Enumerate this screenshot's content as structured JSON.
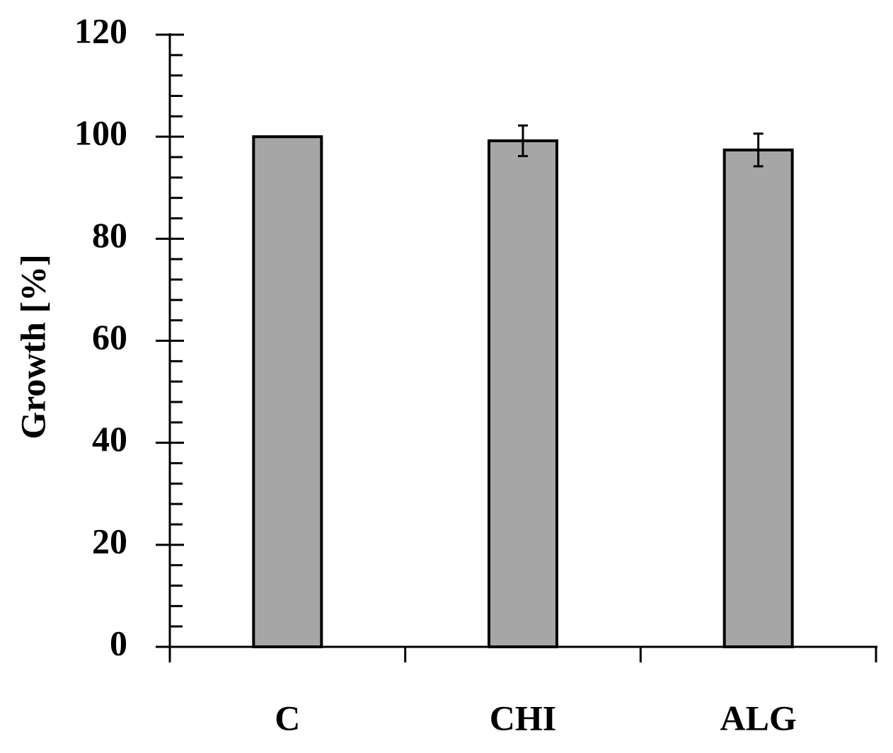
{
  "chart_data": {
    "type": "bar",
    "y_label": "Growth [%]",
    "categories": [
      "C",
      "CHI",
      "ALG"
    ],
    "values": [
      100,
      99.2,
      97.4
    ],
    "errors": [
      null,
      3,
      3.2
    ],
    "color": "#a6a6a6",
    "ylim": [
      0,
      120
    ],
    "yticks": [
      0,
      20,
      40,
      60,
      80,
      100,
      120
    ],
    "yminorticks": [
      4,
      8,
      12,
      16,
      24,
      28,
      32,
      36,
      44,
      48,
      52,
      56,
      64,
      68,
      72,
      76,
      84,
      88,
      92,
      96,
      104,
      108,
      112,
      116
    ],
    "grid": false
  }
}
